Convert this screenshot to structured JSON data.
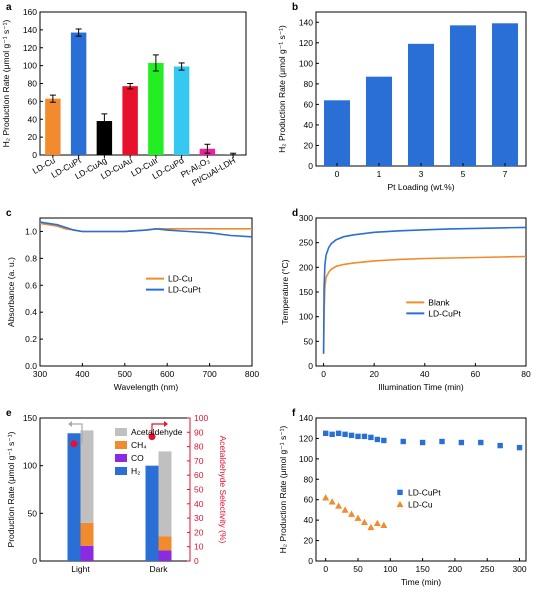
{
  "chart_data": [
    {
      "panel": "a",
      "type": "bar",
      "ylabel": "H₂ Production Rate (μmol g⁻¹ s⁻¹)",
      "ylim": [
        0,
        160
      ],
      "yticks": [
        0,
        20,
        40,
        60,
        80,
        100,
        120,
        140,
        160
      ],
      "categories": [
        "LD-Cu",
        "LD-CuPt",
        "LD-CuAg",
        "LD-CuAu",
        "LD-CuIr",
        "LD-CuPd",
        "Pt-Al₂O₃",
        "Pt/CuAl-LDH"
      ],
      "values": [
        63,
        137,
        38,
        77,
        103,
        99,
        7,
        1
      ],
      "errors": [
        4,
        4,
        8,
        3,
        9,
        4,
        5,
        1
      ],
      "colors": [
        "#f28a2e",
        "#2a6fd6",
        "#000000",
        "#e8112d",
        "#22ee22",
        "#35c8f0",
        "#ec1fa0",
        "#888888"
      ]
    },
    {
      "panel": "b",
      "type": "bar",
      "xlabel": "Pt Loading (wt.%)",
      "ylabel": "H₂ Production Rate (μmol g⁻¹ s⁻¹)",
      "ylim": [
        0,
        150
      ],
      "yticks": [
        0,
        20,
        40,
        60,
        80,
        100,
        120,
        140
      ],
      "categories": [
        "0",
        "1",
        "3",
        "5",
        "7"
      ],
      "values": [
        64,
        87,
        119,
        137,
        139
      ],
      "colors": [
        "#2a6fd6"
      ]
    },
    {
      "panel": "c",
      "type": "line",
      "xlabel": "Wavelength (nm)",
      "ylabel": "Absorbance (a. u.)",
      "xlim": [
        300,
        800
      ],
      "ylim": [
        0,
        1.1
      ],
      "xticks": [
        300,
        400,
        500,
        600,
        700,
        800
      ],
      "yticks": [
        0.0,
        0.2,
        0.4,
        0.6,
        0.8,
        1.0
      ],
      "ytick_labels": [
        "0.0",
        "0.2",
        "0.4",
        "0.6",
        "0.8",
        "1.0"
      ],
      "legend": "center-right",
      "series": [
        {
          "name": "LD-Cu",
          "color": "#f28a2e",
          "x": [
            300,
            320,
            340,
            360,
            380,
            400,
            450,
            500,
            550,
            575,
            600,
            650,
            700,
            750,
            800
          ],
          "y": [
            1.06,
            1.05,
            1.04,
            1.02,
            1.01,
            1.0,
            1.0,
            1.0,
            1.01,
            1.02,
            1.02,
            1.02,
            1.02,
            1.02,
            1.02
          ]
        },
        {
          "name": "LD-CuPt",
          "color": "#2a6fd6",
          "x": [
            300,
            320,
            340,
            360,
            380,
            400,
            450,
            500,
            550,
            575,
            600,
            650,
            700,
            750,
            800
          ],
          "y": [
            1.07,
            1.06,
            1.05,
            1.03,
            1.01,
            1.0,
            1.0,
            1.0,
            1.01,
            1.02,
            1.01,
            1.0,
            0.99,
            0.97,
            0.96
          ]
        }
      ]
    },
    {
      "panel": "d",
      "type": "line",
      "xlabel": "Illumination Time (min)",
      "ylabel": "Temperature (°C)",
      "xlim": [
        -3,
        80
      ],
      "ylim": [
        0,
        300
      ],
      "xticks": [
        0,
        20,
        40,
        60,
        80
      ],
      "yticks": [
        0,
        50,
        100,
        150,
        200,
        250,
        300
      ],
      "legend": "center-right",
      "series": [
        {
          "name": "Blank",
          "color": "#f28a2e",
          "x": [
            0,
            0.2,
            0.5,
            1,
            2,
            3,
            5,
            8,
            12,
            20,
            30,
            40,
            50,
            60,
            70,
            80
          ],
          "y": [
            25,
            110,
            160,
            180,
            190,
            196,
            202,
            206,
            209,
            213,
            216,
            218,
            219,
            220,
            221,
            222
          ]
        },
        {
          "name": "LD-CuPt",
          "color": "#2a6fd6",
          "x": [
            0,
            0.2,
            0.5,
            1,
            2,
            3,
            5,
            8,
            12,
            20,
            30,
            40,
            50,
            60,
            70,
            80
          ],
          "y": [
            25,
            160,
            205,
            225,
            240,
            248,
            256,
            262,
            266,
            271,
            274,
            276,
            278,
            279,
            280,
            281
          ]
        }
      ]
    },
    {
      "panel": "e",
      "type": "bar",
      "stacked": true,
      "categories": [
        "Light",
        "Dark"
      ],
      "ylabel": "Production Rate (μmol g⁻¹ s⁻¹)",
      "y2label": "Acetaldehyde Selectivity (%)",
      "ylim": [
        0,
        150
      ],
      "yticks": [
        0,
        50,
        100,
        150
      ],
      "y2lim": [
        0,
        100
      ],
      "y2ticks": [
        0,
        10,
        20,
        30,
        40,
        50,
        60,
        70,
        80,
        90,
        100
      ],
      "legend": "top-right",
      "series_h2": {
        "name": "H₂",
        "color": "#2a6fd6",
        "values": [
          134,
          100
        ]
      },
      "stack_series": [
        {
          "name": "CO",
          "color": "#8a2be2",
          "values": [
            16,
            11
          ]
        },
        {
          "name": "CH₄",
          "color": "#f28a2e",
          "values": [
            24,
            15
          ]
        },
        {
          "name": "Acetaldehyde",
          "color": "#c0c0c0",
          "values": [
            97,
            89
          ]
        }
      ],
      "selectivity": {
        "color": "#e8112d",
        "values": [
          82,
          87
        ]
      }
    },
    {
      "panel": "f",
      "type": "scatter",
      "xlabel": "Time (min)",
      "ylabel": "H₂ Production Rate (μmol g⁻¹ s⁻¹)",
      "xlim": [
        -15,
        310
      ],
      "ylim": [
        0,
        140
      ],
      "xticks": [
        0,
        50,
        100,
        150,
        200,
        250,
        300
      ],
      "yticks": [
        0,
        20,
        40,
        60,
        80,
        100,
        120,
        140
      ],
      "legend": "center-right",
      "series": [
        {
          "name": "LD-CuPt",
          "color": "#2a6fd6",
          "marker": "square",
          "x": [
            0,
            10,
            20,
            30,
            40,
            50,
            60,
            70,
            80,
            90,
            120,
            150,
            180,
            210,
            240,
            270,
            300
          ],
          "y": [
            125,
            124,
            125,
            124,
            123,
            122,
            122,
            121,
            119,
            118,
            117,
            116,
            117,
            116,
            116,
            113,
            111
          ]
        },
        {
          "name": "LD-Cu",
          "color": "#f28a2e",
          "marker": "triangle",
          "x": [
            0,
            10,
            20,
            30,
            40,
            50,
            60,
            70,
            80,
            90
          ],
          "y": [
            62,
            58,
            54,
            50,
            46,
            42,
            38,
            33,
            37,
            35
          ]
        }
      ]
    }
  ]
}
